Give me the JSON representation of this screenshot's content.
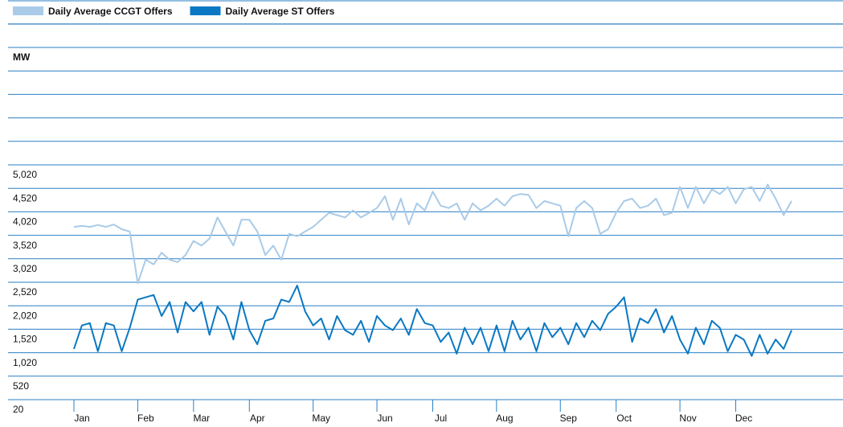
{
  "chart_data": {
    "type": "line",
    "ylabel": "MW",
    "ylim": [
      20,
      5020
    ],
    "yticks": [
      {
        "value": 20,
        "label": "20"
      },
      {
        "value": 520,
        "label": "520"
      },
      {
        "value": 1020,
        "label": "1,020"
      },
      {
        "value": 1520,
        "label": "1,520"
      },
      {
        "value": 2020,
        "label": "2,020"
      },
      {
        "value": 2520,
        "label": "2,520"
      },
      {
        "value": 3020,
        "label": "3,020"
      },
      {
        "value": 3520,
        "label": "3,520"
      },
      {
        "value": 4020,
        "label": "4,020"
      },
      {
        "value": 4520,
        "label": "4,520"
      },
      {
        "value": 5020,
        "label": "5,020"
      }
    ],
    "grid": true,
    "legend": "top-left",
    "categories": [
      "Jan",
      null,
      null,
      null,
      null,
      null,
      null,
      null,
      "Feb",
      null,
      null,
      null,
      null,
      null,
      null,
      "Mar",
      null,
      null,
      null,
      null,
      null,
      null,
      "Apr",
      null,
      null,
      null,
      null,
      null,
      null,
      null,
      "May",
      null,
      null,
      null,
      null,
      null,
      null,
      null,
      "Jun",
      null,
      null,
      null,
      null,
      null,
      null,
      "Jul",
      null,
      null,
      null,
      null,
      null,
      null,
      null,
      "Aug",
      null,
      null,
      null,
      null,
      null,
      null,
      null,
      "Sep",
      null,
      null,
      null,
      null,
      null,
      null,
      "Oct",
      null,
      null,
      null,
      null,
      null,
      null,
      null,
      "Nov",
      null,
      null,
      null,
      null,
      null,
      null,
      "Dec",
      null,
      null,
      null,
      null,
      null,
      null,
      null
    ],
    "series": [
      {
        "name": "Daily Average CCGT Offers",
        "color": "#a9cbe8",
        "values": [
          3700,
          3720,
          3700,
          3740,
          3700,
          3750,
          3650,
          3600,
          2500,
          3000,
          2900,
          3150,
          3000,
          2950,
          3100,
          3400,
          3300,
          3450,
          3900,
          3600,
          3300,
          3850,
          3850,
          3600,
          3100,
          3300,
          3000,
          3550,
          3500,
          3600,
          3700,
          3850,
          4000,
          3950,
          3900,
          4050,
          3900,
          4000,
          4100,
          4350,
          3850,
          4300,
          3750,
          4200,
          4050,
          4450,
          4150,
          4100,
          4200,
          3850,
          4200,
          4050,
          4150,
          4300,
          4150,
          4350,
          4400,
          4380,
          4100,
          4250,
          4200,
          4150,
          3500,
          4100,
          4250,
          4100,
          3550,
          3650,
          4000,
          4250,
          4300,
          4100,
          4150,
          4300,
          3950,
          4000,
          4550,
          4100,
          4550,
          4200,
          4500,
          4400,
          4550,
          4200,
          4500,
          4550,
          4250,
          4600,
          4300,
          3950,
          4250
        ]
      },
      {
        "name": "Daily Average ST Offers",
        "color": "#0a78c2",
        "values": [
          1100,
          1600,
          1650,
          1050,
          1650,
          1600,
          1050,
          1550,
          2150,
          2200,
          2250,
          1800,
          2100,
          1450,
          2100,
          1900,
          2100,
          1400,
          2000,
          1800,
          1300,
          2100,
          1500,
          1200,
          1700,
          1750,
          2150,
          2100,
          2450,
          1900,
          1600,
          1750,
          1300,
          1800,
          1500,
          1400,
          1700,
          1250,
          1800,
          1600,
          1500,
          1750,
          1400,
          1950,
          1650,
          1600,
          1250,
          1450,
          1000,
          1550,
          1200,
          1550,
          1050,
          1600,
          1050,
          1700,
          1300,
          1550,
          1050,
          1650,
          1350,
          1550,
          1200,
          1650,
          1350,
          1700,
          1500,
          1850,
          2000,
          2200,
          1250,
          1750,
          1650,
          1950,
          1450,
          1800,
          1300,
          1000,
          1550,
          1200,
          1700,
          1550,
          1050,
          1400,
          1300,
          950,
          1400,
          1000,
          1300,
          1100,
          1500
        ]
      }
    ]
  }
}
